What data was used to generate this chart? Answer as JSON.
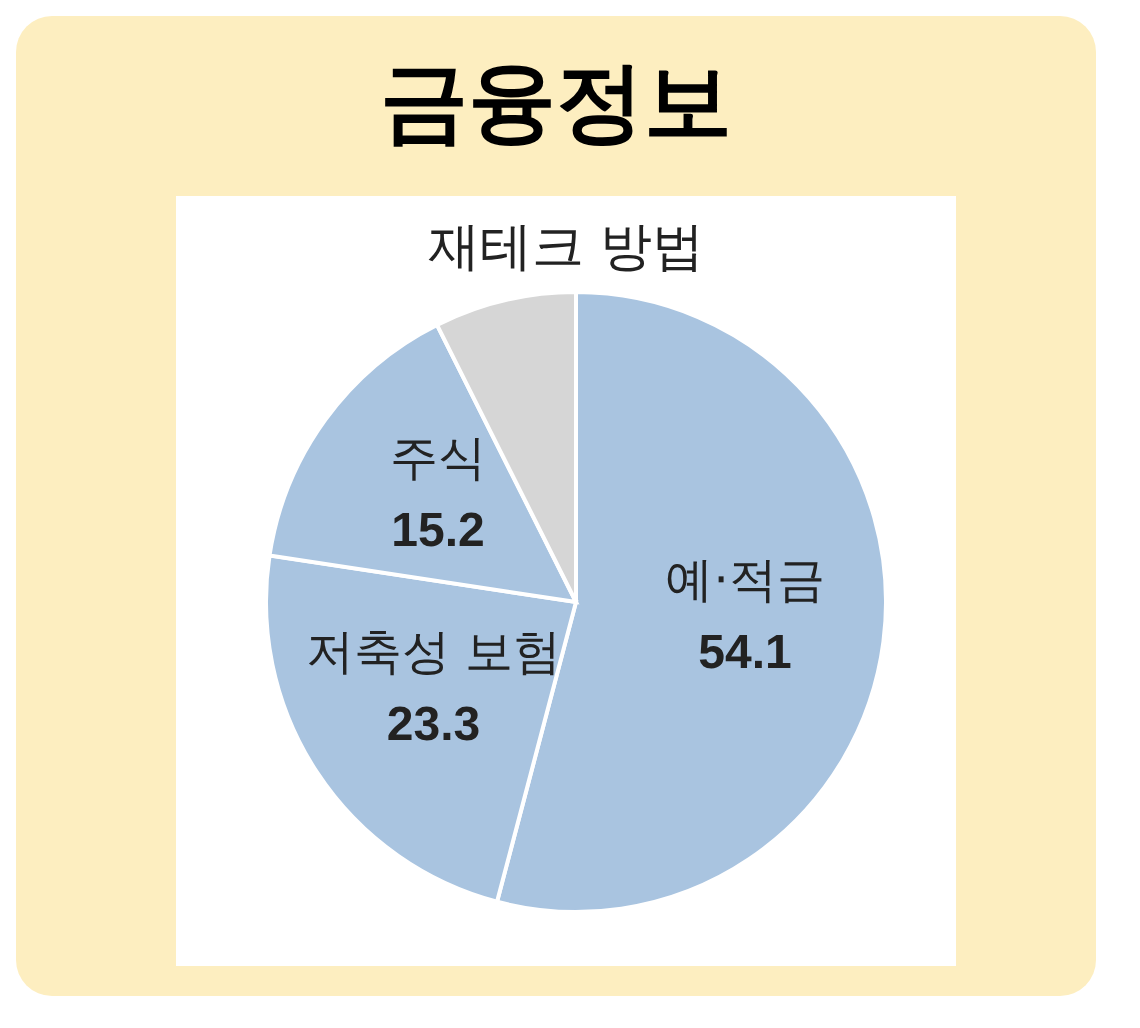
{
  "chart_data": {
    "type": "pie",
    "title": "금융정보",
    "subtitle": "재테크 방법",
    "categories": [
      "예·적금",
      "저축성 보험",
      "주식",
      null
    ],
    "values": [
      54.1,
      23.3,
      15.2,
      7.4
    ],
    "colors": [
      "#a9c4e0",
      "#a9c4e0",
      "#a9c4e0",
      "#d6d6d6"
    ],
    "value_labels": [
      "54.1",
      "23.3",
      "15.2",
      null
    ]
  }
}
